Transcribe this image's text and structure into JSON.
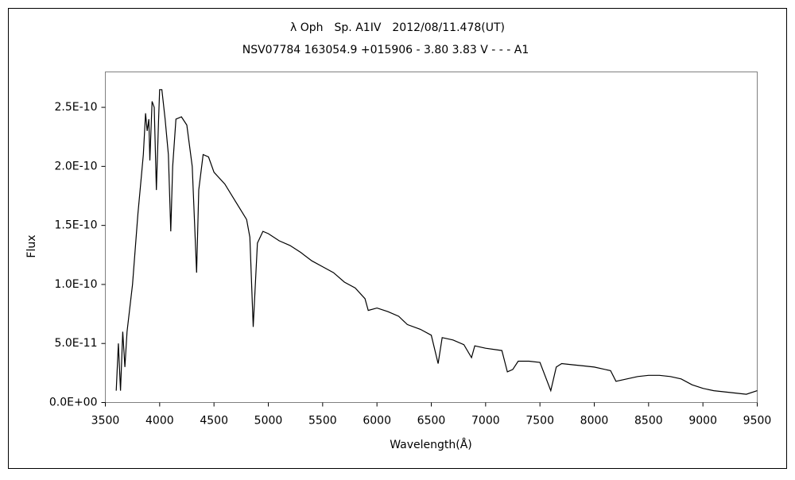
{
  "chart_data": {
    "type": "line",
    "title": "λ Oph　Sp. A1IV　2012/08/11.478(UT)",
    "subtitle": "NSV07784 163054.9 +015906 - 3.80 3.83 V - - - A1",
    "x_label": "Wavelength(Å)",
    "y_label": "Flux",
    "color": "#000000",
    "x": [
      3600,
      3620,
      3640,
      3660,
      3680,
      3700,
      3750,
      3800,
      3830,
      3850,
      3870,
      3885,
      3900,
      3910,
      3930,
      3950,
      3970,
      3990,
      4000,
      4020,
      4050,
      4080,
      4102,
      4120,
      4150,
      4200,
      4250,
      4300,
      4340,
      4360,
      4400,
      4450,
      4500,
      4600,
      4700,
      4800,
      4830,
      4861,
      4900,
      4950,
      5000,
      5100,
      5200,
      5300,
      5400,
      5500,
      5600,
      5700,
      5800,
      5890,
      5920,
      6000,
      6100,
      6200,
      6280,
      6400,
      6500,
      6563,
      6600,
      6700,
      6800,
      6870,
      6900,
      7000,
      7150,
      7200,
      7250,
      7300,
      7400,
      7500,
      7600,
      7650,
      7700,
      7800,
      7900,
      8000,
      8150,
      8200,
      8300,
      8400,
      8500,
      8600,
      8700,
      8800,
      8900,
      9000,
      9100,
      9200,
      9300,
      9400,
      9500
    ],
    "values": [
      1e-11,
      5e-11,
      1e-11,
      6e-11,
      3e-11,
      6e-11,
      1e-10,
      1.6e-10,
      1.9e-10,
      2.1e-10,
      2.45e-10,
      2.3e-10,
      2.4e-10,
      2.05e-10,
      2.55e-10,
      2.5e-10,
      1.8e-10,
      2.4e-10,
      2.65e-10,
      2.65e-10,
      2.4e-10,
      2.1e-10,
      1.45e-10,
      2e-10,
      2.4e-10,
      2.42e-10,
      2.35e-10,
      2e-10,
      1.1e-10,
      1.8e-10,
      2.1e-10,
      2.08e-10,
      1.95e-10,
      1.85e-10,
      1.7e-10,
      1.55e-10,
      1.4e-10,
      6.4e-11,
      1.35e-10,
      1.45e-10,
      1.43e-10,
      1.37e-10,
      1.33e-10,
      1.27e-10,
      1.2e-10,
      1.15e-10,
      1.1e-10,
      1.02e-10,
      9.7e-11,
      8.8e-11,
      7.8e-11,
      8e-11,
      7.7e-11,
      7.3e-11,
      6.6e-11,
      6.2e-11,
      5.7e-11,
      3.3e-11,
      5.5e-11,
      5.3e-11,
      4.9e-11,
      3.8e-11,
      4.8e-11,
      4.6e-11,
      4.4e-11,
      2.6e-11,
      2.8e-11,
      3.5e-11,
      3.5e-11,
      3.4e-11,
      1e-11,
      3e-11,
      3.3e-11,
      3.2e-11,
      3.1e-11,
      3e-11,
      2.7e-11,
      1.8e-11,
      2e-11,
      2.2e-11,
      2.3e-11,
      2.3e-11,
      2.2e-11,
      2e-11,
      1.5e-11,
      1.2e-11,
      1e-11,
      9e-12,
      8e-12,
      7e-12,
      1e-11
    ],
    "xlim": [
      3500,
      9500
    ],
    "xticks": [
      3500,
      4000,
      4500,
      5000,
      5500,
      6000,
      6500,
      7000,
      7500,
      8000,
      8500,
      9000,
      9500
    ],
    "ylim": [
      0,
      2.8e-10
    ],
    "yticks": [
      {
        "value": 0,
        "label": "0.0E+00"
      },
      {
        "value": 5e-11,
        "label": "5.0E-11"
      },
      {
        "value": 1e-10,
        "label": "1.0E-10"
      },
      {
        "value": 1.5e-10,
        "label": "1.5E-10"
      },
      {
        "value": 2e-10,
        "label": "2.0E-10"
      },
      {
        "value": 2.5e-10,
        "label": "2.5E-10"
      }
    ]
  }
}
